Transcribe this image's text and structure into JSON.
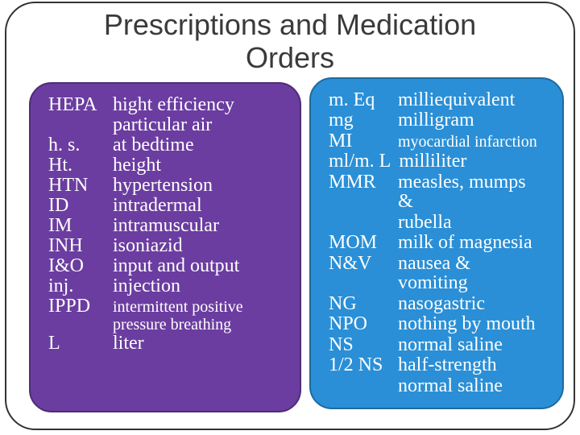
{
  "title_line1": "Prescriptions and Medication",
  "title_line2": "Orders",
  "left_card": {
    "bg": "#6b3da0",
    "entries": [
      {
        "abbr": "HEPA",
        "def": "hight efficiency"
      },
      {
        "abbr": "",
        "def": "particular air",
        "cont": true
      },
      {
        "abbr": "h. s.",
        "def": "at bedtime"
      },
      {
        "abbr": "Ht.",
        "def": "height"
      },
      {
        "abbr": "HTN",
        "def": "hypertension"
      },
      {
        "abbr": "ID",
        "def": "intradermal"
      },
      {
        "abbr": "IM",
        "def": "intramuscular"
      },
      {
        "abbr": "INH",
        "def": "isoniazid"
      },
      {
        "abbr": "I&O",
        "def": "input and output"
      },
      {
        "abbr": "inj.",
        "def": "injection"
      },
      {
        "abbr": "IPPD",
        "def": "intermittent positive",
        "def_small": true
      },
      {
        "abbr": "",
        "def": "pressure breathing",
        "cont": true,
        "def_small": true
      },
      {
        "abbr": "L",
        "def": "liter"
      }
    ]
  },
  "right_card": {
    "bg": "#2a8fd6",
    "cutoff_hint_left": "g",
    "cutoff_hint_right": "g",
    "entries": [
      {
        "abbr": "m. Eq",
        "def": "milliequivalent"
      },
      {
        "abbr": "mg",
        "def": "milligram"
      },
      {
        "abbr": "MI",
        "def": "myocardial infarction",
        "def_small": true
      },
      {
        "abbr": "ml/m. L",
        "def": "milliliter"
      },
      {
        "abbr": "MMR",
        "def": "measles, mumps &"
      },
      {
        "abbr": "",
        "def": "rubella",
        "cont": true
      },
      {
        "abbr": "MOM",
        "def": "milk of magnesia"
      },
      {
        "abbr": "N&V",
        "def": "nausea & vomiting"
      },
      {
        "abbr": "NG",
        "def": "nasogastric"
      },
      {
        "abbr": "NPO",
        "def": "nothing by mouth"
      },
      {
        "abbr": "NS",
        "def": "normal saline"
      },
      {
        "abbr": "1/2 NS",
        "def": " half-strength"
      },
      {
        "abbr": "",
        "def": "normal saline",
        "cont": true
      }
    ]
  }
}
